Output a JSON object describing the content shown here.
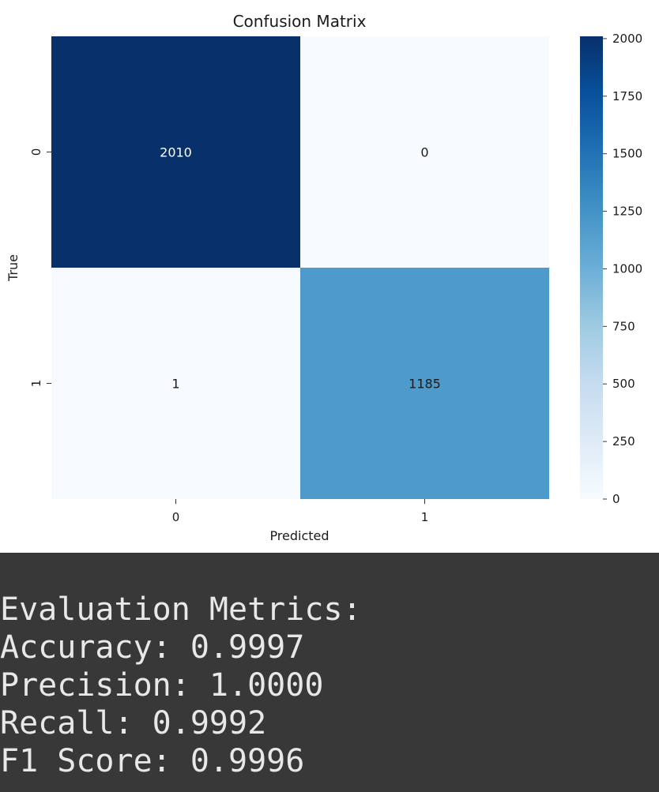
{
  "chart_data": {
    "type": "heatmap",
    "title": "Confusion Matrix",
    "xlabel": "Predicted",
    "ylabel": "True",
    "x_categories": [
      "0",
      "1"
    ],
    "y_categories": [
      "0",
      "1"
    ],
    "values": [
      [
        2010,
        0
      ],
      [
        1,
        1185
      ]
    ],
    "colormap": "Blues",
    "colorbar": {
      "min": 0,
      "max": 2010,
      "ticks": [
        0,
        250,
        500,
        750,
        1000,
        1250,
        1500,
        1750,
        2000
      ]
    },
    "colors": {
      "low": "#f7fbff",
      "high": "#08306b"
    }
  },
  "console": {
    "lines": [
      "Evaluation Metrics:",
      "Accuracy: 0.9997",
      "Precision: 1.0000",
      "Recall: 0.9992",
      "F1 Score: 0.9996"
    ]
  }
}
